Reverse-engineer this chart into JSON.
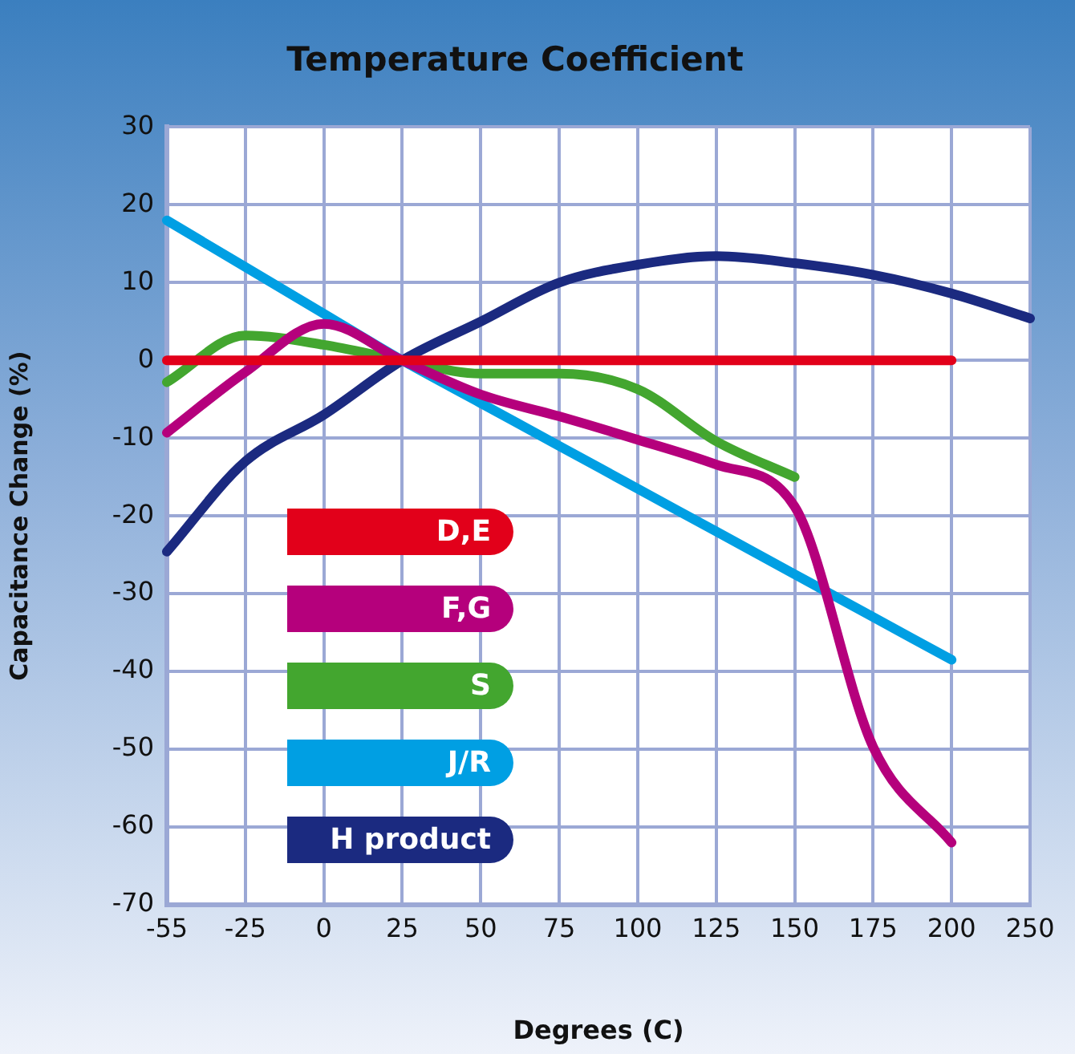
{
  "chart_data": {
    "type": "line",
    "title": "Temperature Coefficient",
    "xlabel": "Degrees (C)",
    "ylabel": "Capacitance Change (%)",
    "categories": [
      "-55",
      "-25",
      "0",
      "25",
      "50",
      "75",
      "100",
      "125",
      "150",
      "175",
      "200",
      "250"
    ],
    "ylim": [
      -70,
      30
    ],
    "yticks": [
      -70,
      -60,
      -50,
      -40,
      -30,
      -20,
      -10,
      0,
      10,
      20,
      30
    ],
    "grid": true,
    "legend": "bottom left",
    "marker": "none",
    "line_style": "solid",
    "series": [
      {
        "name": "D,E",
        "color": "#e2001a",
        "values": [
          0,
          0,
          0,
          0,
          0,
          0,
          0,
          0,
          0,
          0,
          0,
          null
        ]
      },
      {
        "name": "F,G",
        "color": "#b5007c",
        "values": [
          -9.3,
          -1.5,
          4.7,
          0,
          -4.4,
          -7.2,
          -10.2,
          -13.4,
          -18.8,
          -49.7,
          -62,
          null
        ]
      },
      {
        "name": "S",
        "color": "#43a62f",
        "values": [
          -2.8,
          3.2,
          2,
          0,
          -1.7,
          -1.7,
          -3.7,
          -10.4,
          -15,
          null,
          null,
          null
        ]
      },
      {
        "name": "J/R",
        "color": "#009fe3",
        "values": [
          18,
          12,
          6,
          0,
          -5.5,
          -11,
          -16.5,
          -22,
          -27.5,
          -33,
          -38.5,
          null
        ]
      },
      {
        "name": "H product",
        "color": "#1b2a80",
        "values": [
          -24.6,
          -13,
          -7,
          0,
          5,
          10,
          12.3,
          13.4,
          12.5,
          11,
          8.6,
          5.4
        ]
      }
    ]
  }
}
